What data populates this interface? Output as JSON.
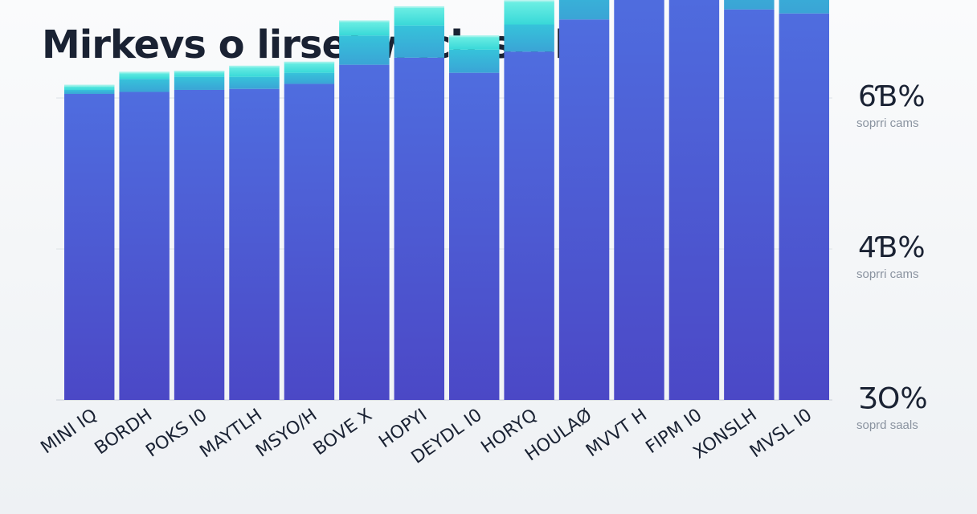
{
  "chart_data": {
    "type": "bar",
    "title": "Mirkevs o lirsef wtch stale",
    "categories": [
      "MINI IQ",
      "BORDH",
      "POKS I0",
      "MAYTLH",
      "MSYO/H",
      "BOVE X",
      "HOPYI",
      "DEYDL I0",
      "HORYQ",
      "HOULAØ",
      "MVVT H",
      "FIPM I0",
      "XONSLH",
      "MVSL I0"
    ],
    "series": [
      {
        "values": [
          30.4,
          30.6,
          30.8,
          30.9,
          31.4,
          33.3,
          34.0,
          32.5,
          34.6,
          37.8,
          40.4,
          41.9,
          38.8,
          38.4
        ]
      },
      {
        "values": [
          0.4,
          1.3,
          1.3,
          1.2,
          1.1,
          2.9,
          3.2,
          2.3,
          2.7,
          4.9,
          6.1,
          7.1,
          6.2,
          6.3
        ]
      },
      {
        "values": [
          0.5,
          0.7,
          0.6,
          1.1,
          1.1,
          1.5,
          1.9,
          1.4,
          2.4,
          2.5,
          5.2,
          5.1,
          3.3,
          3.3
        ]
      }
    ],
    "right_labels": [
      {
        "value": "6Ɓ%",
        "sub": "soprri cams"
      },
      {
        "value": "4Ɓ%",
        "sub": "soprri cams"
      },
      {
        "value": "ƷO%",
        "sub": "soprd saals"
      }
    ],
    "ylim": [
      30,
      60
    ],
    "colors": [
      "#4a5ed8",
      "#3ab3d8",
      "#3fe2d6"
    ]
  }
}
